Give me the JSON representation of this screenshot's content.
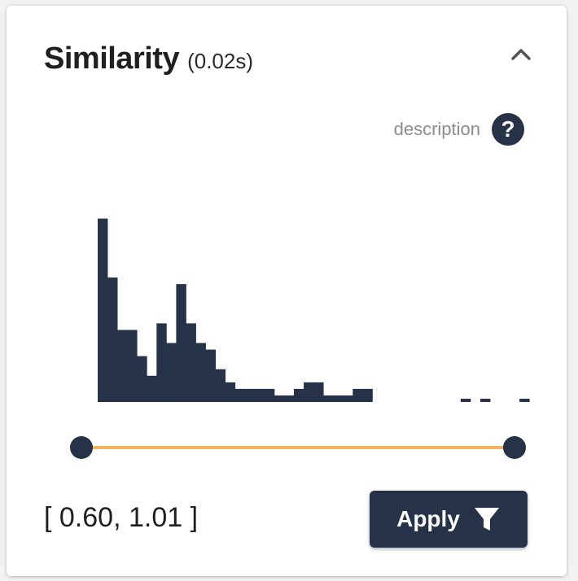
{
  "panel": {
    "title": "Similarity",
    "timing": "(0.02s)",
    "collapse_icon": "chevron-up-icon"
  },
  "description": {
    "label": "description",
    "help_glyph": "?",
    "help_icon": "question-circle-icon"
  },
  "chart_data": {
    "type": "bar",
    "bin_start": 0.6,
    "bin_width": 0.01,
    "counts": [
      28,
      19,
      11,
      11,
      7,
      4,
      12,
      9,
      18,
      12,
      9,
      8,
      5,
      3,
      2,
      2,
      2,
      2,
      1,
      1,
      2,
      3,
      3,
      1,
      1,
      1,
      2,
      2,
      0,
      0,
      0,
      0,
      0,
      0,
      0,
      0,
      0,
      0.5,
      0,
      0.5,
      0,
      0,
      0,
      0.5
    ],
    "bar_color": "#253248",
    "grid": false
  },
  "slider": {
    "min": 0.6,
    "max": 1.01,
    "track_color": "#f0b35c",
    "handle_color": "#253248"
  },
  "range": {
    "text": "[ 0.60, 1.01 ]"
  },
  "apply": {
    "label": "Apply",
    "icon": "filter-icon"
  }
}
